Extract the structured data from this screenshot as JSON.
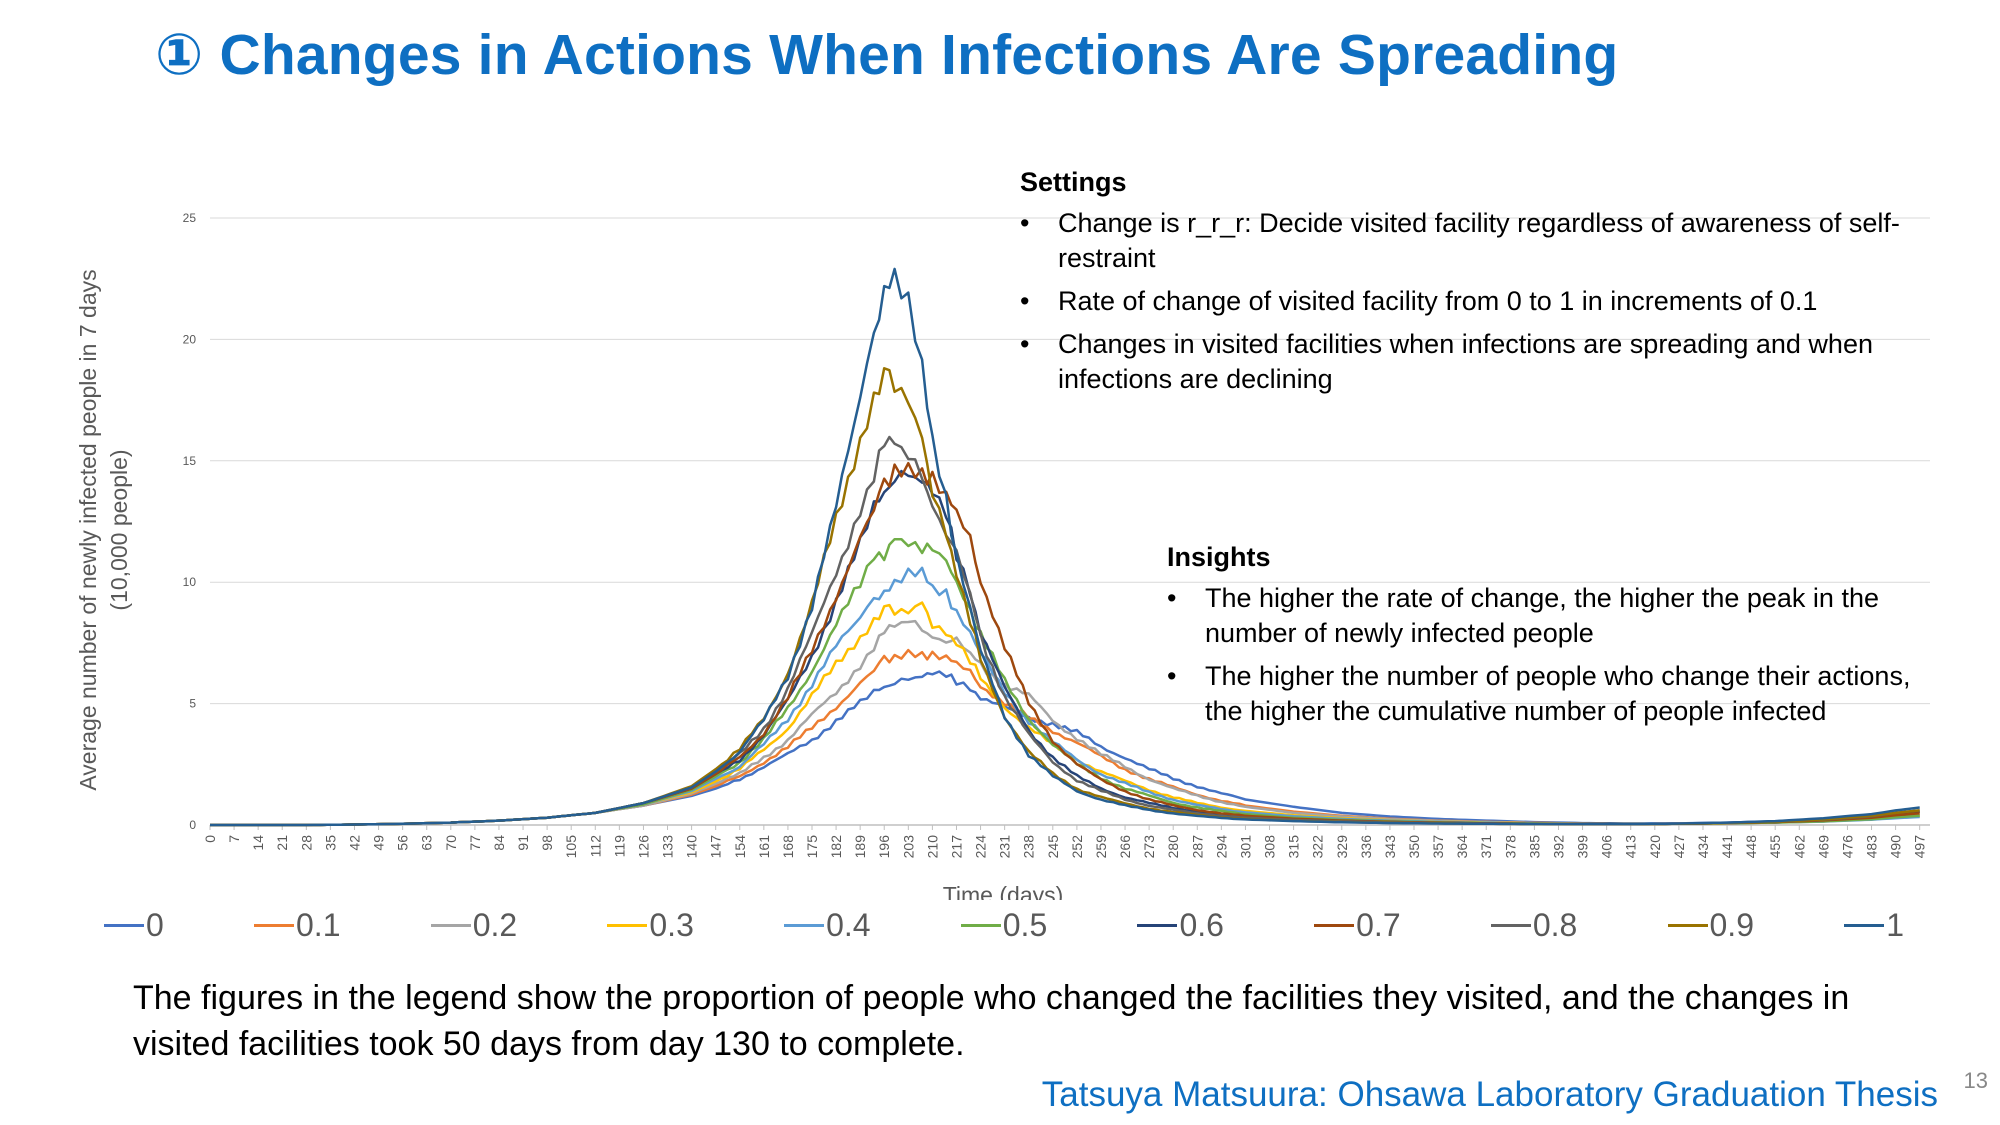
{
  "slide": {
    "title": "① Changes in Actions When Infections Are Spreading",
    "caption": "The figures in the legend show the proportion of people who changed the facilities they visited, and the changes in visited facilities took 50 days from day 130 to complete.",
    "footer": "Tatsuya Matsuura: Ohsawa Laboratory Graduation Thesis",
    "page_number": "13"
  },
  "settings": {
    "heading": "Settings",
    "bullets": [
      "Change is r_r_r: Decide visited facility regardless of awareness of self-restraint",
      "Rate of change of visited facility from 0 to 1 in increments of 0.1",
      "Changes in visited facilities when infections are spreading and when infections are declining"
    ]
  },
  "insights": {
    "heading": "Insights",
    "bullets": [
      "The higher the rate of change, the higher the peak in the number of newly infected people",
      "The higher the number of people who change their actions, the higher the cumulative number of people infected"
    ]
  },
  "bullet_glyph": "•",
  "chart_data": {
    "type": "line",
    "xlabel": "Time (days)",
    "ylabel": "Average number of newly infected people in 7 days",
    "ylabel_sub": "(10,000 people)",
    "ylim": [
      0,
      25
    ],
    "yticks": [
      0,
      5,
      10,
      15,
      20,
      25
    ],
    "xlim": [
      0,
      500
    ],
    "xticks": [
      0,
      7,
      14,
      21,
      28,
      35,
      42,
      49,
      56,
      63,
      70,
      77,
      84,
      91,
      98,
      105,
      112,
      119,
      126,
      133,
      140,
      147,
      154,
      161,
      168,
      175,
      182,
      189,
      196,
      203,
      210,
      217,
      224,
      231,
      238,
      245,
      252,
      259,
      266,
      273,
      280,
      287,
      294,
      301,
      308,
      315,
      322,
      329,
      336,
      343,
      350,
      357,
      364,
      371,
      378,
      385,
      392,
      399,
      406,
      413,
      420,
      427,
      434,
      441,
      448,
      455,
      462,
      469,
      476,
      483,
      490,
      497
    ],
    "grid": true,
    "legend_position": "bottom",
    "x": [
      0,
      14,
      28,
      42,
      56,
      70,
      84,
      98,
      112,
      126,
      140,
      147,
      154,
      161,
      168,
      175,
      182,
      189,
      193,
      196,
      199,
      203,
      207,
      210,
      214,
      217,
      221,
      224,
      231,
      238,
      245,
      252,
      259,
      266,
      273,
      280,
      287,
      294,
      301,
      315,
      329,
      343,
      357,
      371,
      385,
      399,
      413,
      427,
      441,
      455,
      469,
      483,
      490,
      497
    ],
    "series": [
      {
        "name": "0",
        "color": "#4472c4",
        "values": [
          0,
          0,
          0,
          0.02,
          0.05,
          0.1,
          0.18,
          0.3,
          0.5,
          0.8,
          1.2,
          1.5,
          1.9,
          2.4,
          2.9,
          3.5,
          4.3,
          5.0,
          5.4,
          5.7,
          5.9,
          6.1,
          6.2,
          6.2,
          6.1,
          5.9,
          5.6,
          5.3,
          4.8,
          4.4,
          4.2,
          3.8,
          3.2,
          2.8,
          2.3,
          1.9,
          1.6,
          1.3,
          1.05,
          0.75,
          0.5,
          0.35,
          0.25,
          0.18,
          0.12,
          0.08,
          0.06,
          0.07,
          0.1,
          0.15,
          0.22,
          0.35,
          0.45,
          0.55
        ]
      },
      {
        "name": "0.1",
        "color": "#ed7d31",
        "values": [
          0,
          0,
          0,
          0.02,
          0.05,
          0.1,
          0.18,
          0.3,
          0.5,
          0.8,
          1.25,
          1.6,
          2.0,
          2.6,
          3.2,
          4.0,
          4.9,
          5.8,
          6.4,
          6.8,
          7.0,
          7.2,
          7.1,
          7.0,
          6.9,
          6.6,
          6.2,
          5.8,
          5.0,
          4.4,
          3.9,
          3.4,
          2.8,
          2.3,
          1.9,
          1.55,
          1.25,
          1.0,
          0.8,
          0.55,
          0.38,
          0.26,
          0.18,
          0.13,
          0.09,
          0.06,
          0.05,
          0.06,
          0.08,
          0.12,
          0.18,
          0.28,
          0.35,
          0.42
        ]
      },
      {
        "name": "0.2",
        "color": "#a5a5a5",
        "values": [
          0,
          0,
          0,
          0.02,
          0.05,
          0.1,
          0.18,
          0.3,
          0.5,
          0.8,
          1.3,
          1.7,
          2.1,
          2.8,
          3.5,
          4.5,
          5.5,
          6.6,
          7.4,
          7.9,
          8.3,
          8.5,
          8.1,
          7.8,
          7.7,
          7.5,
          7.0,
          6.6,
          5.8,
          5.3,
          4.3,
          3.6,
          2.9,
          2.4,
          1.9,
          1.5,
          1.2,
          0.95,
          0.75,
          0.5,
          0.35,
          0.24,
          0.17,
          0.12,
          0.08,
          0.06,
          0.05,
          0.06,
          0.08,
          0.11,
          0.16,
          0.25,
          0.32,
          0.38
        ]
      },
      {
        "name": "0.3",
        "color": "#ffc000",
        "values": [
          0,
          0,
          0,
          0.02,
          0.05,
          0.1,
          0.18,
          0.3,
          0.5,
          0.85,
          1.35,
          1.8,
          2.3,
          3.1,
          4.0,
          5.3,
          6.6,
          7.8,
          8.5,
          8.9,
          8.8,
          8.7,
          9.0,
          8.4,
          8.0,
          7.5,
          6.8,
          6.0,
          4.9,
          4.0,
          3.3,
          2.7,
          2.2,
          1.8,
          1.45,
          1.15,
          0.9,
          0.72,
          0.58,
          0.4,
          0.28,
          0.2,
          0.14,
          0.1,
          0.07,
          0.05,
          0.04,
          0.05,
          0.07,
          0.1,
          0.15,
          0.23,
          0.3,
          0.35
        ]
      },
      {
        "name": "0.4",
        "color": "#5b9bd5",
        "values": [
          0,
          0,
          0,
          0.02,
          0.05,
          0.1,
          0.18,
          0.3,
          0.5,
          0.85,
          1.4,
          1.9,
          2.4,
          3.3,
          4.4,
          5.8,
          7.3,
          8.6,
          9.4,
          9.6,
          9.8,
          10.2,
          10.3,
          9.8,
          9.5,
          8.9,
          8.0,
          7.0,
          5.5,
          4.3,
          3.4,
          2.7,
          2.1,
          1.7,
          1.35,
          1.05,
          0.82,
          0.65,
          0.52,
          0.36,
          0.25,
          0.18,
          0.13,
          0.09,
          0.06,
          0.05,
          0.04,
          0.05,
          0.07,
          0.1,
          0.14,
          0.22,
          0.28,
          0.33
        ]
      },
      {
        "name": "0.5",
        "color": "#70ad47",
        "values": [
          0,
          0,
          0,
          0.02,
          0.05,
          0.1,
          0.18,
          0.3,
          0.5,
          0.85,
          1.45,
          2.0,
          2.6,
          3.5,
          4.8,
          6.4,
          8.2,
          9.9,
          10.9,
          11.3,
          11.6,
          11.5,
          11.4,
          11.2,
          10.8,
          10.1,
          9.0,
          7.8,
          5.9,
          4.4,
          3.3,
          2.5,
          1.95,
          1.5,
          1.2,
          0.92,
          0.72,
          0.57,
          0.45,
          0.3,
          0.21,
          0.15,
          0.11,
          0.08,
          0.06,
          0.04,
          0.04,
          0.05,
          0.07,
          0.1,
          0.15,
          0.24,
          0.32,
          0.38
        ]
      },
      {
        "name": "0.6",
        "color": "#264478",
        "values": [
          0,
          0,
          0,
          0.02,
          0.05,
          0.1,
          0.18,
          0.3,
          0.5,
          0.9,
          1.5,
          2.1,
          2.7,
          3.7,
          5.1,
          7.0,
          9.2,
          11.5,
          12.9,
          13.8,
          14.3,
          14.6,
          14.3,
          13.6,
          12.6,
          11.2,
          9.6,
          8.0,
          5.6,
          3.9,
          2.8,
          2.0,
          1.5,
          1.15,
          0.9,
          0.7,
          0.55,
          0.44,
          0.35,
          0.24,
          0.17,
          0.12,
          0.09,
          0.06,
          0.05,
          0.04,
          0.04,
          0.05,
          0.08,
          0.12,
          0.2,
          0.32,
          0.45,
          0.55
        ]
      },
      {
        "name": "0.7",
        "color": "#9e480e",
        "values": [
          0,
          0,
          0,
          0.02,
          0.05,
          0.1,
          0.18,
          0.3,
          0.5,
          0.9,
          1.5,
          2.1,
          2.8,
          3.8,
          5.2,
          7.2,
          9.5,
          11.7,
          13.0,
          14.0,
          14.8,
          14.9,
          14.7,
          14.2,
          13.5,
          12.8,
          11.6,
          10.2,
          7.3,
          5.0,
          3.5,
          2.5,
          1.85,
          1.4,
          1.05,
          0.8,
          0.62,
          0.48,
          0.38,
          0.26,
          0.18,
          0.13,
          0.1,
          0.07,
          0.05,
          0.04,
          0.04,
          0.05,
          0.08,
          0.12,
          0.19,
          0.3,
          0.4,
          0.48
        ]
      },
      {
        "name": "0.8",
        "color": "#636363",
        "values": [
          0,
          0,
          0,
          0.02,
          0.05,
          0.1,
          0.18,
          0.3,
          0.5,
          0.9,
          1.55,
          2.2,
          2.9,
          4.0,
          5.6,
          7.8,
          10.5,
          13.0,
          14.5,
          15.6,
          16.0,
          15.4,
          14.5,
          13.2,
          12.2,
          11.0,
          9.4,
          7.8,
          5.3,
          3.7,
          2.6,
          1.85,
          1.4,
          1.05,
          0.8,
          0.62,
          0.48,
          0.38,
          0.3,
          0.21,
          0.15,
          0.11,
          0.08,
          0.06,
          0.05,
          0.04,
          0.04,
          0.05,
          0.08,
          0.13,
          0.22,
          0.36,
          0.5,
          0.6
        ]
      },
      {
        "name": "0.9",
        "color": "#997300",
        "values": [
          0,
          0,
          0,
          0.02,
          0.05,
          0.1,
          0.18,
          0.3,
          0.5,
          0.9,
          1.6,
          2.3,
          3.1,
          4.4,
          6.3,
          9.0,
          12.6,
          16.0,
          17.8,
          18.5,
          18.2,
          17.4,
          15.7,
          14.0,
          12.2,
          10.3,
          8.4,
          6.8,
          4.5,
          3.0,
          2.1,
          1.5,
          1.15,
          0.88,
          0.68,
          0.53,
          0.41,
          0.32,
          0.25,
          0.17,
          0.12,
          0.09,
          0.07,
          0.05,
          0.04,
          0.04,
          0.04,
          0.05,
          0.08,
          0.13,
          0.23,
          0.38,
          0.5,
          0.6
        ]
      },
      {
        "name": "1",
        "color": "#255e91",
        "values": [
          0,
          0,
          0,
          0.02,
          0.05,
          0.1,
          0.18,
          0.3,
          0.5,
          0.9,
          1.55,
          2.2,
          3.0,
          4.3,
          6.2,
          9.0,
          13.0,
          17.8,
          20.5,
          22.0,
          22.3,
          21.2,
          18.6,
          16.0,
          13.4,
          11.2,
          9.0,
          7.1,
          4.5,
          2.9,
          2.0,
          1.4,
          1.05,
          0.8,
          0.62,
          0.48,
          0.37,
          0.29,
          0.23,
          0.16,
          0.11,
          0.08,
          0.06,
          0.05,
          0.04,
          0.04,
          0.04,
          0.06,
          0.1,
          0.16,
          0.28,
          0.45,
          0.6,
          0.72
        ]
      }
    ]
  }
}
